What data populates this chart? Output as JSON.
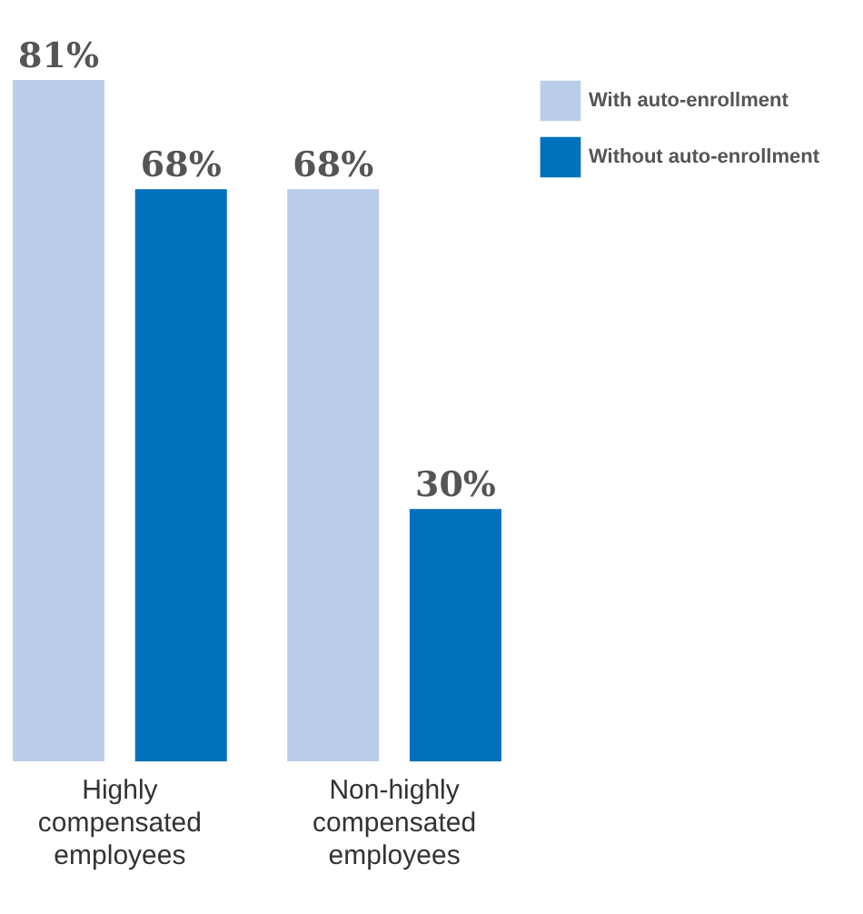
{
  "chart_data": {
    "type": "bar",
    "categories": [
      "Highly compensated employees",
      "Non-highly compensated employees"
    ],
    "series": [
      {
        "name": "With auto-enrollment",
        "color": "#bccde9",
        "values": [
          81,
          68
        ],
        "value_labels": [
          "81%",
          "68%"
        ]
      },
      {
        "name": "Without auto-enrollment",
        "color": "#0071bc",
        "values": [
          68,
          30
        ],
        "value_labels": [
          "68%",
          "30%"
        ]
      }
    ],
    "legend": "top right"
  }
}
